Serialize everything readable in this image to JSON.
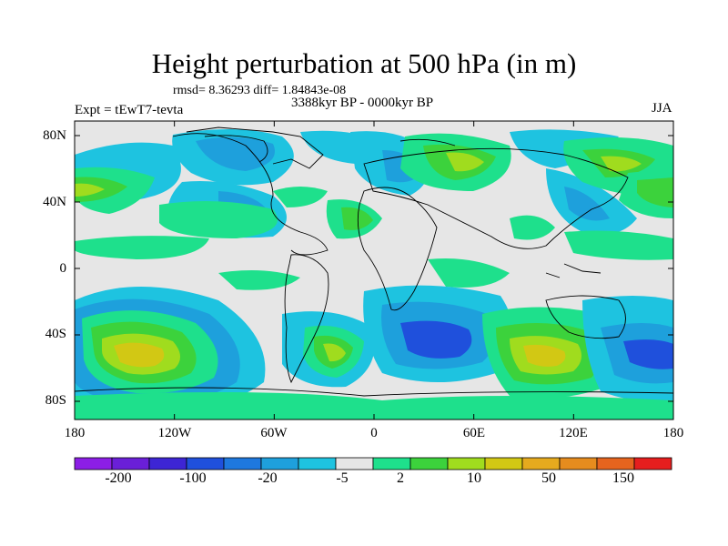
{
  "title": "Height perturbation at 500 hPa (in m)",
  "stats": "rmsd= 8.36293 diff= 1.84843e-08",
  "expt": "Expt = tEwT7-tevta",
  "period": "3388kyr BP - 0000kyr BP",
  "season": "JJA",
  "lat_labels": [
    "80N",
    "40N",
    "0",
    "40S",
    "80S"
  ],
  "lon_labels": [
    "180",
    "120W",
    "60W",
    "0",
    "60E",
    "120E",
    "180"
  ],
  "colorbar": {
    "labels": [
      "-200",
      "-100",
      "-20",
      "-5",
      "2",
      "10",
      "50",
      "150"
    ],
    "colors": [
      "#8c1ee6",
      "#6a1fd8",
      "#3d25d4",
      "#1f50dc",
      "#1e78de",
      "#1ea0dc",
      "#1ec3e0",
      "#e6e6e6",
      "#1ee08c",
      "#3cd23c",
      "#a0dc1e",
      "#d2c814",
      "#e6aa1e",
      "#e68c1e",
      "#e6641e",
      "#e61e1e"
    ]
  },
  "field_colors": {
    "background": "#e6e6e6",
    "neg_weak": "#1ec3e0",
    "neg_mid": "#1ea0dc",
    "neg_strong": "#1f50dc",
    "pos_weak": "#1ee08c",
    "pos_mid": "#3cd23c",
    "pos_strong": "#a0dc1e",
    "pos_peak": "#d2c814"
  }
}
